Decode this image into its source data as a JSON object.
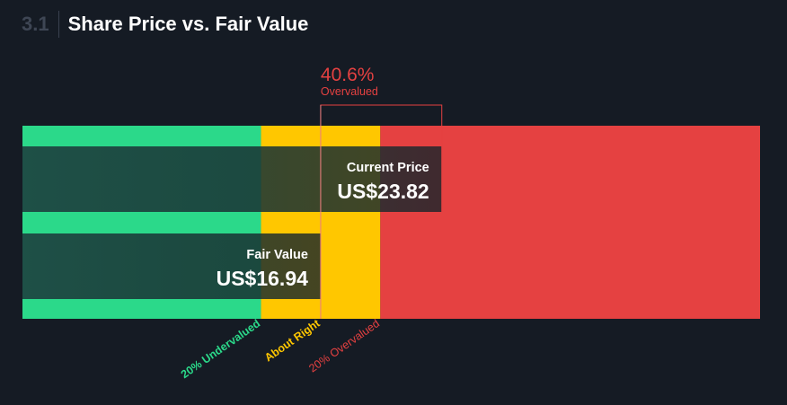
{
  "header": {
    "section_number": "3.1",
    "title": "Share Price vs. Fair Value"
  },
  "colors": {
    "background": "#151b24",
    "undervalued": "#2bd98a",
    "about_right": "#ffc700",
    "overvalued": "#e54141",
    "overlay": "#1a2a2a"
  },
  "chart_data": {
    "type": "bar",
    "currency": "US$",
    "current_price": 23.82,
    "fair_value": 16.94,
    "bars": [
      {
        "label": "Current Price",
        "value_text": "US$23.82",
        "value": 23.82
      },
      {
        "label": "Fair Value",
        "value_text": "US$16.94",
        "value": 16.94
      }
    ],
    "difference": {
      "percent_text": "40.6%",
      "label": "Overvalued"
    },
    "zones": [
      {
        "label": "20% Undervalued",
        "boundary": 13.552
      },
      {
        "label": "About Right",
        "boundary": 16.94
      },
      {
        "label": "20% Overvalued",
        "boundary": 20.328
      }
    ],
    "xlim": [
      0,
      41.9
    ]
  }
}
